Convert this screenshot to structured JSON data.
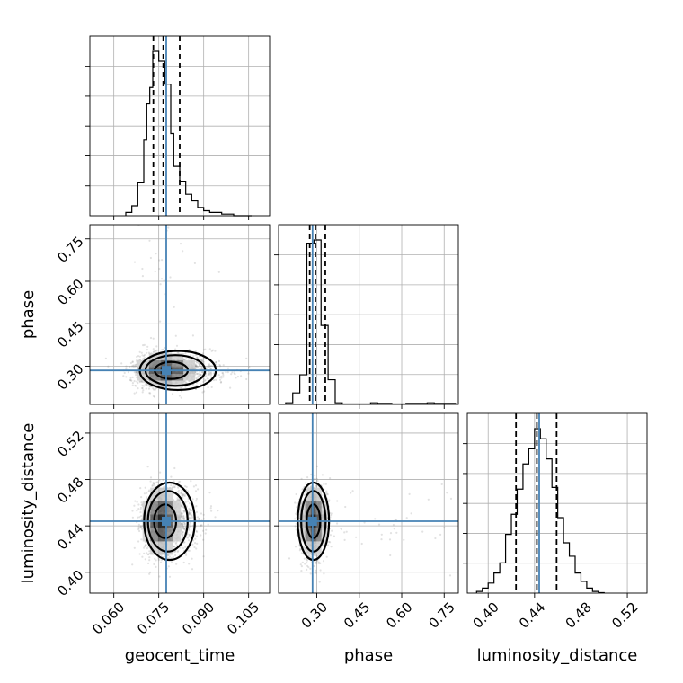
{
  "chart_data": {
    "type": "corner",
    "parameters": [
      "geocent_time",
      "phase",
      "luminosity_distance"
    ],
    "axes": {
      "geocent_time": {
        "label": "geocent_time",
        "range": [
          0.052,
          0.112
        ],
        "ticks": [
          0.06,
          0.075,
          0.09,
          0.105
        ],
        "tick_labels": [
          "0.060",
          "0.075",
          "0.090",
          "0.105"
        ]
      },
      "phase": {
        "label": "phase",
        "range": [
          0.165,
          0.8
        ],
        "ticks": [
          0.3,
          0.45,
          0.6,
          0.75
        ],
        "tick_labels": [
          "0.30",
          "0.45",
          "0.60",
          "0.75"
        ]
      },
      "luminosity_distance": {
        "label": "luminosity_distance",
        "range": [
          0.382,
          0.537
        ],
        "ticks": [
          0.4,
          0.44,
          0.48,
          0.52
        ],
        "tick_labels": [
          "0.40",
          "0.44",
          "0.48",
          "0.52"
        ]
      }
    },
    "truths": {
      "geocent_time": 0.0775,
      "phase": 0.285,
      "luminosity_distance": 0.444
    },
    "medians": {
      "geocent_time": 0.0765,
      "phase": 0.295,
      "luminosity_distance": 0.442
    },
    "quantiles": {
      "geocent_time": [
        0.0732,
        0.0765,
        0.082
      ],
      "phase": [
        0.275,
        0.295,
        0.33
      ],
      "luminosity_distance": [
        0.424,
        0.442,
        0.459
      ]
    },
    "histograms": {
      "geocent_time": {
        "edges": [
          0.064,
          0.066,
          0.068,
          0.07,
          0.071,
          0.072,
          0.073,
          0.074,
          0.075,
          0.076,
          0.077,
          0.078,
          0.079,
          0.08,
          0.081,
          0.082,
          0.083,
          0.084,
          0.086,
          0.088,
          0.09,
          0.092,
          0.094,
          0.096,
          0.098,
          0.1,
          0.104,
          0.106
        ],
        "counts": [
          2,
          6,
          20,
          46,
          68,
          78,
          100,
          100,
          94,
          94,
          80,
          80,
          50,
          30,
          30,
          21,
          21,
          13,
          9,
          5,
          3,
          2,
          2,
          1,
          1,
          0,
          0
        ]
      },
      "phase": {
        "edges": [
          0.19,
          0.215,
          0.24,
          0.265,
          0.29,
          0.315,
          0.34,
          0.365,
          0.39,
          0.415,
          0.44,
          0.465,
          0.49,
          0.515,
          0.54,
          0.565,
          0.59,
          0.615,
          0.64,
          0.665,
          0.69,
          0.715,
          0.74,
          0.765,
          0.79
        ],
        "counts": [
          1,
          7,
          18,
          98,
          100,
          48,
          15,
          1,
          0.3,
          0.3,
          0.3,
          0.3,
          1,
          0.6,
          0.6,
          0.3,
          0.3,
          0.6,
          0.6,
          0.6,
          1,
          0.6,
          0.6,
          0.6
        ]
      },
      "luminosity_distance": {
        "edges": [
          0.39,
          0.395,
          0.4,
          0.405,
          0.41,
          0.415,
          0.42,
          0.425,
          0.43,
          0.435,
          0.44,
          0.445,
          0.45,
          0.455,
          0.46,
          0.465,
          0.47,
          0.475,
          0.48,
          0.485,
          0.49,
          0.495,
          0.5
        ],
        "counts": [
          1,
          3,
          6,
          12,
          18,
          35,
          47,
          62,
          77,
          86,
          98,
          92,
          80,
          63,
          45,
          30,
          22,
          12,
          7,
          3,
          1,
          0.3
        ]
      }
    },
    "contour_levels": [
      "39.3%",
      "86.5%",
      "98.9%"
    ],
    "pairs": [
      {
        "x": "geocent_time",
        "y": "phase",
        "mean": [
          0.0775,
          0.285
        ],
        "sigma": [
          0.0048,
          0.03
        ],
        "contour_sigmas": [
          1.0,
          1.8,
          2.3
        ]
      },
      {
        "x": "geocent_time",
        "y": "luminosity_distance",
        "mean": [
          0.076,
          0.444
        ],
        "sigma": [
          0.0032,
          0.0145
        ],
        "contour_sigmas": [
          1.0,
          1.8,
          2.3
        ]
      },
      {
        "x": "phase",
        "y": "luminosity_distance",
        "mean": [
          0.288,
          0.444
        ],
        "sigma": [
          0.024,
          0.0145
        ],
        "contour_sigmas": [
          1.0,
          1.8,
          2.3
        ]
      }
    ]
  }
}
